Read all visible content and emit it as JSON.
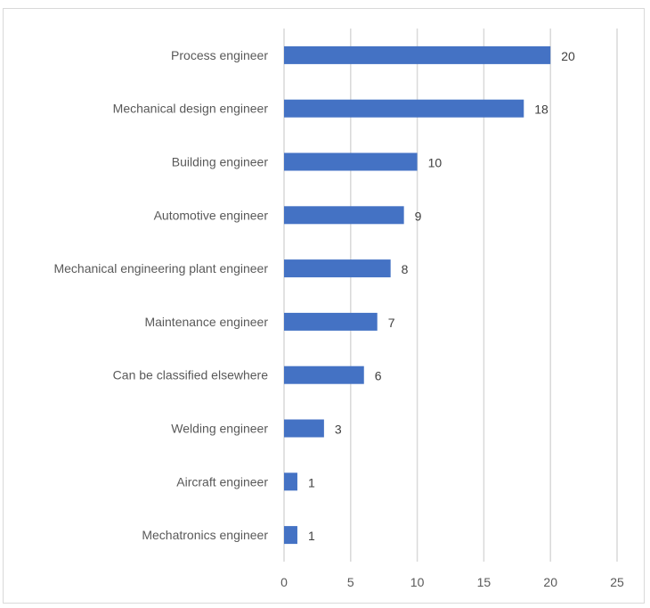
{
  "chart_data": {
    "type": "bar",
    "orientation": "horizontal",
    "title": "",
    "xlabel": "",
    "ylabel": "",
    "categories": [
      "Process engineer",
      "Mechanical design engineer",
      "Building engineer",
      "Automotive engineer",
      "Mechanical engineering plant engineer",
      "Maintenance engineer",
      "Can be classified elsewhere",
      "Welding engineer",
      "Aircraft engineer",
      "Mechatronics engineer"
    ],
    "values": [
      20,
      18,
      10,
      9,
      8,
      7,
      6,
      3,
      1,
      1
    ],
    "data_labels": [
      "20",
      "18",
      "10",
      "9",
      "8",
      "7",
      "6",
      "3",
      "1",
      "1"
    ],
    "xlim": [
      0,
      25
    ],
    "xticks": [
      0,
      5,
      10,
      15,
      20,
      25
    ],
    "xtick_labels": [
      "0",
      "5",
      "10",
      "15",
      "20",
      "25"
    ],
    "grid": "vertical",
    "legend": "none",
    "bar_color": "#4472c4",
    "grid_color": "#d9d9d9"
  }
}
